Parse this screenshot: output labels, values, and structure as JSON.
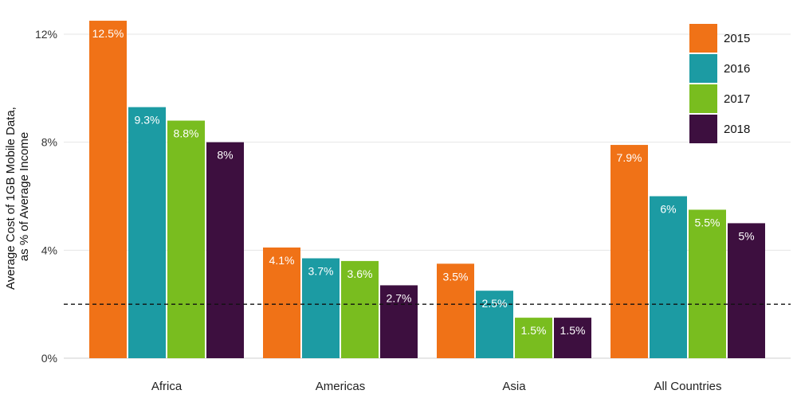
{
  "chart_data": {
    "type": "bar",
    "title": "",
    "xlabel": "",
    "ylabel_lines": [
      "Average Cost of 1GB Mobile Data,",
      "as % of Average Income"
    ],
    "categories": [
      "Africa",
      "Americas",
      "Asia",
      "All Countries"
    ],
    "ylim": [
      0,
      12
    ],
    "yticks": [
      0,
      4,
      8,
      12
    ],
    "ytick_labels": [
      "0%",
      "4%",
      "8%",
      "12%"
    ],
    "reference_line": 2,
    "legend_position": "top-right",
    "grid": true,
    "series": [
      {
        "name": "2015",
        "color": "#f07217",
        "values": [
          12.5,
          4.1,
          3.5,
          7.9
        ],
        "labels": [
          "12.5%",
          "4.1%",
          "3.5%",
          "7.9%"
        ]
      },
      {
        "name": "2016",
        "color": "#1c9ba3",
        "values": [
          9.3,
          3.7,
          2.5,
          6
        ],
        "labels": [
          "9.3%",
          "3.7%",
          "2.5%",
          "6%"
        ]
      },
      {
        "name": "2017",
        "color": "#79bd1f",
        "values": [
          8.8,
          3.6,
          1.5,
          5.5
        ],
        "labels": [
          "8.8%",
          "3.6%",
          "1.5%",
          "5.5%"
        ]
      },
      {
        "name": "2018",
        "color": "#3d0f3f",
        "values": [
          8,
          2.7,
          1.5,
          5
        ],
        "labels": [
          "8%",
          "2.7%",
          "1.5%",
          "5%"
        ]
      }
    ]
  }
}
